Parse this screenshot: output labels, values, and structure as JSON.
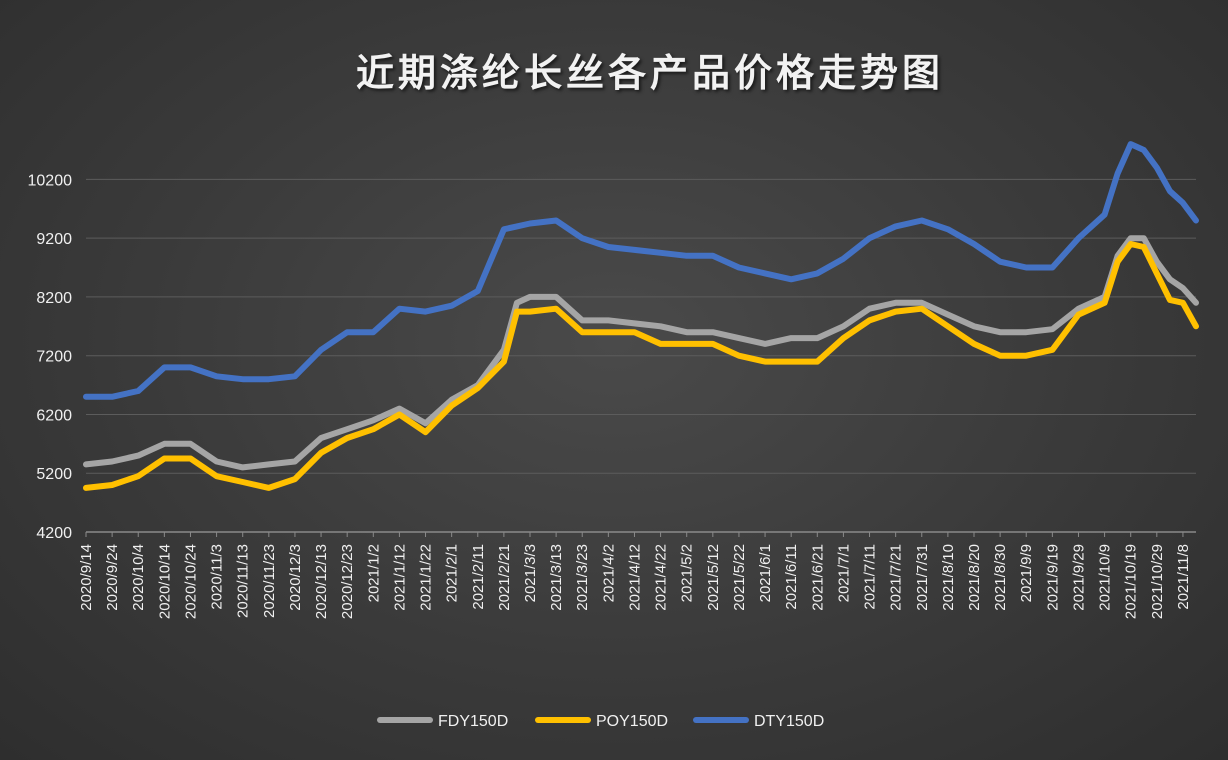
{
  "chart_data": {
    "type": "line",
    "title": "近期涤纶长丝各产品价格走势图",
    "xlabel": "",
    "ylabel": "",
    "ylim": [
      4200,
      10700
    ],
    "yticks": [
      4200,
      5200,
      6200,
      7200,
      8200,
      9200,
      10200
    ],
    "grid": true,
    "legend_position": "bottom",
    "x_tick_labels": [
      "2020/9/14",
      "2020/9/24",
      "2020/10/4",
      "2020/10/14",
      "2020/10/24",
      "2020/11/3",
      "2020/11/13",
      "2020/11/23",
      "2020/12/3",
      "2020/12/13",
      "2020/12/23",
      "2021/1/2",
      "2021/1/12",
      "2021/1/22",
      "2021/2/1",
      "2021/2/11",
      "2021/2/21",
      "2021/3/3",
      "2021/3/13",
      "2021/3/23",
      "2021/4/2",
      "2021/4/12",
      "2021/4/22",
      "2021/5/2",
      "2021/5/12",
      "2021/5/22",
      "2021/6/1",
      "2021/6/11",
      "2021/6/21",
      "2021/7/1",
      "2021/7/11",
      "2021/7/21",
      "2021/7/31",
      "2021/8/10",
      "2021/8/20",
      "2021/8/30",
      "2021/9/9",
      "2021/9/19",
      "2021/9/29",
      "2021/10/9",
      "2021/10/19",
      "2021/10/29",
      "2021/11/8"
    ],
    "x": [
      "2020/9/14",
      "2020/9/24",
      "2020/10/4",
      "2020/10/14",
      "2020/10/24",
      "2020/11/3",
      "2020/11/13",
      "2020/11/23",
      "2020/12/3",
      "2020/12/13",
      "2020/12/23",
      "2021/1/2",
      "2021/1/12",
      "2021/1/22",
      "2021/2/1",
      "2021/2/11",
      "2021/2/21",
      "2021/2/26",
      "2021/3/3",
      "2021/3/13",
      "2021/3/23",
      "2021/4/2",
      "2021/4/12",
      "2021/4/22",
      "2021/5/2",
      "2021/5/12",
      "2021/5/22",
      "2021/6/1",
      "2021/6/11",
      "2021/6/21",
      "2021/7/1",
      "2021/7/11",
      "2021/7/21",
      "2021/7/31",
      "2021/8/10",
      "2021/8/20",
      "2021/8/30",
      "2021/9/9",
      "2021/9/19",
      "2021/9/29",
      "2021/10/9",
      "2021/10/14",
      "2021/10/19",
      "2021/10/24",
      "2021/10/29",
      "2021/11/3",
      "2021/11/8",
      "2021/11/13"
    ],
    "series": [
      {
        "name": "FDY150D",
        "color": "#a5a5a5",
        "values": [
          5350,
          5400,
          5500,
          5700,
          5700,
          5400,
          5300,
          5350,
          5400,
          5800,
          5950,
          6100,
          6300,
          6050,
          6450,
          6700,
          7300,
          8100,
          8200,
          8200,
          7800,
          7800,
          7750,
          7700,
          7600,
          7600,
          7500,
          7400,
          7500,
          7500,
          7700,
          8000,
          8100,
          8100,
          7900,
          7700,
          7600,
          7600,
          7650,
          8000,
          8200,
          8900,
          9200,
          9200,
          8800,
          8500,
          8350,
          8100
        ]
      },
      {
        "name": "POY150D",
        "color": "#ffc000",
        "values": [
          4950,
          5000,
          5150,
          5450,
          5450,
          5150,
          5050,
          4950,
          5100,
          5550,
          5800,
          5950,
          6200,
          5900,
          6350,
          6650,
          7100,
          7950,
          7950,
          8000,
          7600,
          7600,
          7600,
          7400,
          7400,
          7400,
          7200,
          7100,
          7100,
          7100,
          7500,
          7800,
          7950,
          8000,
          7700,
          7400,
          7200,
          7200,
          7300,
          7900,
          8100,
          8800,
          9100,
          9050,
          8600,
          8150,
          8100,
          7700
        ]
      },
      {
        "name": "DTY150D",
        "color": "#4472c4",
        "values": [
          6500,
          6500,
          6600,
          7000,
          7000,
          6850,
          6800,
          6800,
          6850,
          7300,
          7600,
          7600,
          8000,
          7950,
          8050,
          8300,
          9350,
          9400,
          9450,
          9500,
          9200,
          9050,
          9000,
          8950,
          8900,
          8900,
          8700,
          8600,
          8500,
          8600,
          8850,
          9200,
          9400,
          9500,
          9350,
          9100,
          8800,
          8700,
          8700,
          9200,
          9600,
          10300,
          10800,
          10700,
          10400,
          10000,
          9800,
          9500
        ]
      }
    ]
  }
}
